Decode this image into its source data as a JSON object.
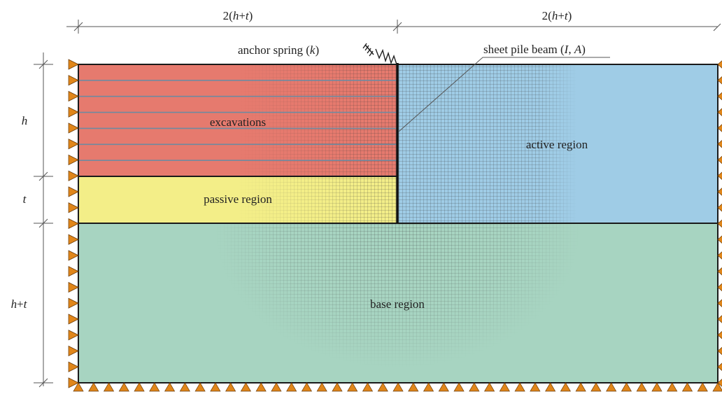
{
  "colors": {
    "excavation": "#e67a6e",
    "passive": "#f3ee88",
    "active": "#9fcce6",
    "base": "#a7d4c1",
    "mesh": "#3a3a3a",
    "support": "#e0861a",
    "border": "#1a1a1a"
  },
  "dimensions": {
    "top_left": {
      "pre": "2(",
      "v1": "h",
      "op": "+",
      "v2": "t",
      "post": ")"
    },
    "top_right": {
      "pre": "2(",
      "v1": "h",
      "op": "+",
      "v2": "t",
      "post": ")"
    },
    "left_h": "h",
    "left_t": "t",
    "left_ht": {
      "v1": "h",
      "op": "+",
      "v2": "t"
    }
  },
  "callouts": {
    "anchor": {
      "text": "anchor spring (",
      "sym": "k",
      "close": ")"
    },
    "pile": {
      "text": "sheet pile beam (",
      "sym1": "I",
      "sep": ", ",
      "sym2": "A",
      "close": ")"
    }
  },
  "regions": {
    "excavations": "excavations",
    "passive": "passive region",
    "active": "active region",
    "base": "base region"
  },
  "excavation_layers": 7,
  "support_icon": "triangle-roller-support-icon"
}
